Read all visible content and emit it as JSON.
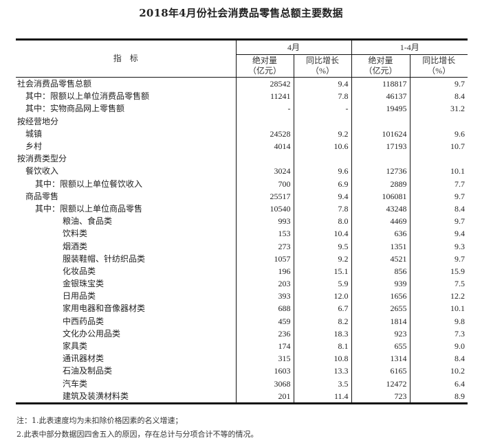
{
  "title": "2018年4月份社会消费品零售总额主要数据",
  "header": {
    "indicator": "指　标",
    "group1": "4月",
    "group2": "1-4月",
    "abs_label": "绝对量",
    "abs_unit": "（亿元）",
    "yoy_label": "同比增长",
    "yoy_unit": "（%）"
  },
  "rows": [
    {
      "label": "社会消费品零售总额",
      "indent": 0,
      "cells": [
        "28542",
        "9.4",
        "118817",
        "9.7"
      ]
    },
    {
      "label": "其中：限额以上单位消费品零售额",
      "indent": 1,
      "cells": [
        "11241",
        "7.8",
        "46137",
        "8.4"
      ]
    },
    {
      "label": "其中：实物商品网上零售额",
      "indent": 1,
      "cells": [
        "-",
        "-",
        "19495",
        "31.2"
      ]
    },
    {
      "label": "按经营地分",
      "indent": 0,
      "cells": [
        "",
        "",
        "",
        ""
      ]
    },
    {
      "label": "城镇",
      "indent": 1,
      "cells": [
        "24528",
        "9.2",
        "101624",
        "9.6"
      ]
    },
    {
      "label": "乡村",
      "indent": 1,
      "cells": [
        "4014",
        "10.6",
        "17193",
        "10.7"
      ]
    },
    {
      "label": "按消费类型分",
      "indent": 0,
      "cells": [
        "",
        "",
        "",
        ""
      ]
    },
    {
      "label": "餐饮收入",
      "indent": 1,
      "cells": [
        "3024",
        "9.6",
        "12736",
        "10.1"
      ]
    },
    {
      "label": "其中：限额以上单位餐饮收入",
      "indent": 2,
      "cells": [
        "700",
        "6.9",
        "2889",
        "7.7"
      ]
    },
    {
      "label": "商品零售",
      "indent": 1,
      "cells": [
        "25517",
        "9.4",
        "106081",
        "9.7"
      ]
    },
    {
      "label": "其中：限额以上单位商品零售",
      "indent": 2,
      "cells": [
        "10540",
        "7.8",
        "43248",
        "8.4"
      ]
    },
    {
      "label": "粮油、食品类",
      "indent": 3,
      "cells": [
        "993",
        "8.0",
        "4469",
        "9.7"
      ]
    },
    {
      "label": "饮料类",
      "indent": 3,
      "cells": [
        "153",
        "10.4",
        "636",
        "9.4"
      ]
    },
    {
      "label": "烟酒类",
      "indent": 3,
      "cells": [
        "273",
        "9.5",
        "1351",
        "9.3"
      ]
    },
    {
      "label": "服装鞋帽、针纺织品类",
      "indent": 3,
      "cells": [
        "1057",
        "9.2",
        "4521",
        "9.7"
      ]
    },
    {
      "label": "化妆品类",
      "indent": 3,
      "cells": [
        "196",
        "15.1",
        "856",
        "15.9"
      ]
    },
    {
      "label": "金银珠宝类",
      "indent": 3,
      "cells": [
        "203",
        "5.9",
        "939",
        "7.5"
      ]
    },
    {
      "label": "日用品类",
      "indent": 3,
      "cells": [
        "393",
        "12.0",
        "1656",
        "12.2"
      ]
    },
    {
      "label": "家用电器和音像器材类",
      "indent": 3,
      "cells": [
        "688",
        "6.7",
        "2655",
        "10.1"
      ]
    },
    {
      "label": "中西药品类",
      "indent": 3,
      "cells": [
        "459",
        "8.2",
        "1814",
        "9.8"
      ]
    },
    {
      "label": "文化办公用品类",
      "indent": 3,
      "cells": [
        "236",
        "18.3",
        "923",
        "7.3"
      ]
    },
    {
      "label": "家具类",
      "indent": 3,
      "cells": [
        "174",
        "8.1",
        "655",
        "9.0"
      ]
    },
    {
      "label": "通讯器材类",
      "indent": 3,
      "cells": [
        "315",
        "10.8",
        "1314",
        "8.4"
      ]
    },
    {
      "label": "石油及制品类",
      "indent": 3,
      "cells": [
        "1603",
        "13.3",
        "6165",
        "10.2"
      ]
    },
    {
      "label": "汽车类",
      "indent": 3,
      "cells": [
        "3068",
        "3.5",
        "12472",
        "6.4"
      ]
    },
    {
      "label": "建筑及装潢材料类",
      "indent": 3,
      "cells": [
        "201",
        "11.4",
        "723",
        "8.9"
      ]
    }
  ],
  "notes": [
    "注：1.此表速度均为未扣除价格因素的名义增速；",
    "2.此表中部分数据因四舍五入的原因，存在总计与分项合计不等的情况。"
  ]
}
